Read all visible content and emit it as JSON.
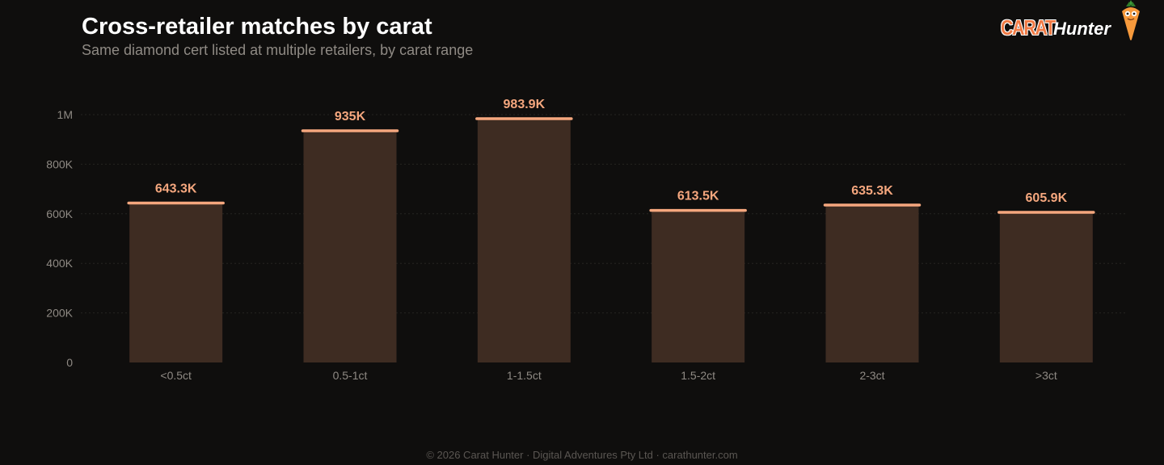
{
  "header": {
    "title": "Cross-retailer matches by carat",
    "subtitle": "Same diamond cert listed at multiple retailers, by carat range"
  },
  "logo": {
    "word1": "CARAT",
    "word2": "Hunter",
    "mascot_icon": "carrot-mascot-icon"
  },
  "chart_data": {
    "type": "bar",
    "categories": [
      "<0.5ct",
      "0.5-1ct",
      "1-1.5ct",
      "1.5-2ct",
      "2-3ct",
      ">3ct"
    ],
    "values": [
      643300,
      935000,
      983900,
      613500,
      635300,
      605900
    ],
    "value_labels": [
      "643.3K",
      "935K",
      "983.9K",
      "613.5K",
      "635.3K",
      "605.9K"
    ],
    "yticks": [
      0,
      200000,
      400000,
      600000,
      800000,
      1000000
    ],
    "ytick_labels": [
      "0",
      "200K",
      "400K",
      "600K",
      "800K",
      "1M"
    ],
    "ylim": [
      0,
      1000000
    ],
    "grid": true,
    "colors": {
      "bar_fill": "#3e2c22",
      "bar_cap": "#f5a77e",
      "value_label": "#f5a77e",
      "tick_label": "#8f8a84",
      "grid": "#262421"
    }
  },
  "footer": {
    "text": "© 2026 Carat Hunter · Digital Adventures Pty Ltd · carathunter.com"
  }
}
